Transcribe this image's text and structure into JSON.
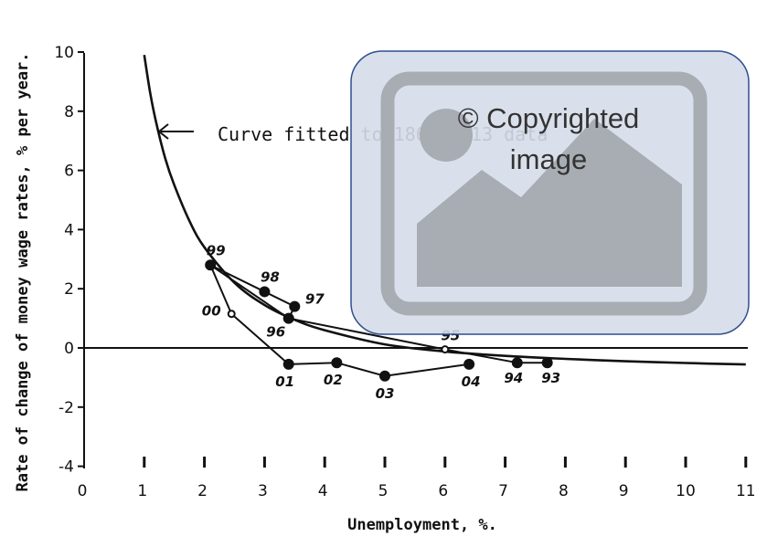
{
  "chart_data": {
    "type": "line",
    "title": "",
    "xlabel": "Unemployment, %.",
    "ylabel": "Rate of change of money wage rates, % per year.",
    "xlim": [
      0,
      11
    ],
    "ylim": [
      -4,
      10
    ],
    "x_ticks": [
      "0",
      "1",
      "2",
      "3",
      "4",
      "5",
      "6",
      "7",
      "8",
      "9",
      "10",
      "11"
    ],
    "y_ticks": [
      "10",
      "8",
      "6",
      "4",
      "2",
      "0",
      "-2",
      "-4"
    ],
    "grid": false,
    "annotation": "Curve fitted to 1861—1913 data",
    "series": [
      {
        "name": "Curve fitted to 1861—1913 data",
        "kind": "curve",
        "x": [
          1.0,
          1.1,
          1.2,
          1.35,
          1.5,
          1.75,
          2.0,
          2.5,
          3.0,
          3.5,
          4.0,
          5.0,
          6.0,
          7.0,
          8.0,
          9.0,
          10.0,
          11.0
        ],
        "y": [
          9.9,
          8.6,
          7.6,
          6.4,
          5.5,
          4.3,
          3.4,
          2.2,
          1.45,
          0.95,
          0.6,
          0.12,
          -0.12,
          -0.27,
          -0.37,
          -0.45,
          -0.51,
          -0.56
        ]
      },
      {
        "name": "",
        "kind": "loop",
        "points": [
          {
            "year": "93",
            "x": 7.7,
            "y": -0.5
          },
          {
            "year": "94",
            "x": 7.2,
            "y": -0.5
          },
          {
            "year": "95",
            "x": 6.0,
            "y": -0.05
          },
          {
            "year": "96",
            "x": 3.4,
            "y": 1.0
          },
          {
            "year": "97",
            "x": 3.5,
            "y": 1.4
          },
          {
            "year": "98",
            "x": 3.0,
            "y": 1.9
          },
          {
            "year": "99",
            "x": 2.1,
            "y": 2.8
          },
          {
            "year": "00",
            "x": 2.45,
            "y": 1.15
          },
          {
            "year": "01",
            "x": 3.4,
            "y": -0.55
          },
          {
            "year": "02",
            "x": 4.2,
            "y": -0.5
          },
          {
            "year": "03",
            "x": 5.0,
            "y": -0.95
          },
          {
            "year": "04",
            "x": 6.4,
            "y": -0.55
          }
        ],
        "extra_segment": {
          "from_x": 2.1,
          "from_y": 2.8,
          "to_x": 3.4,
          "to_y": 1.0
        }
      }
    ],
    "watermark": "© Copyrighted image",
    "watermark_lines": [
      "© Copyrighted",
      "image"
    ],
    "colors": {
      "ink": "#111111",
      "watermark_fill": "#d6dde9",
      "watermark_border": "#2f4f8f",
      "watermark_inner": "#a8acb3"
    }
  }
}
